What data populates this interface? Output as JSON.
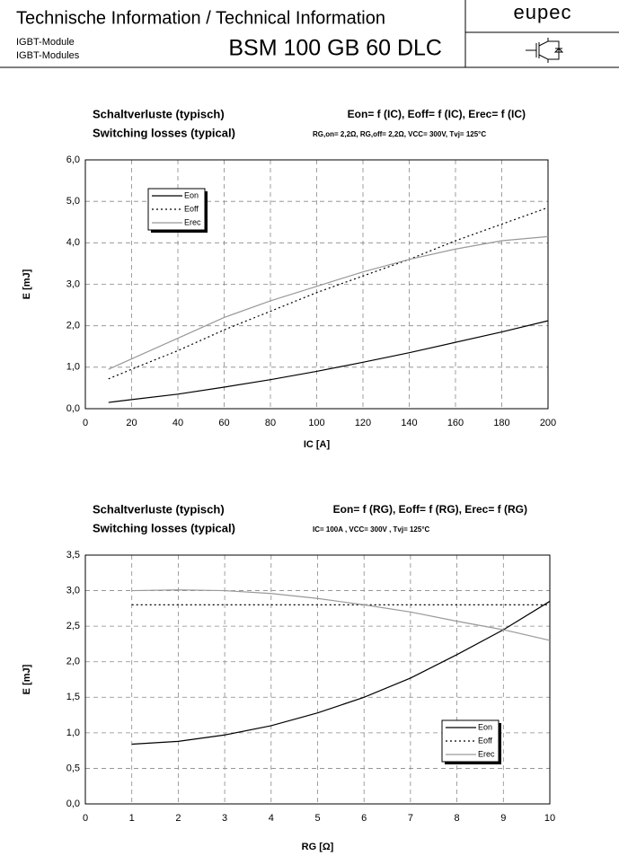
{
  "header": {
    "title": "Technische Information / Technical Information",
    "line1": "IGBT-Module",
    "line2": "IGBT-Modules",
    "part": "BSM 100 GB 60 DLC",
    "brand": "eupec"
  },
  "chart_data": [
    {
      "type": "line",
      "title_de": "Schaltverluste (typisch)",
      "title_en": "Switching losses (typical)",
      "formula": "Eon= f (IC), Eoff= f (IC), Erec= f (IC)",
      "subtitle": "RG,on= 2,2Ω, RG,off= 2,2Ω, VCC= 300V, Tvj= 125°C",
      "x_label": "IC [A]",
      "y_label": "E [mJ]",
      "x": [
        10,
        20,
        40,
        60,
        80,
        100,
        120,
        140,
        160,
        180,
        200
      ],
      "series": [
        {
          "name": "Eon",
          "color": "#000000",
          "style": "solid",
          "values": [
            0.15,
            0.22,
            0.35,
            0.52,
            0.7,
            0.9,
            1.12,
            1.35,
            1.6,
            1.85,
            2.12
          ]
        },
        {
          "name": "Eoff",
          "color": "#000000",
          "style": "dotted",
          "values": [
            0.72,
            0.95,
            1.4,
            1.9,
            2.35,
            2.8,
            3.2,
            3.6,
            4.05,
            4.45,
            4.85
          ]
        },
        {
          "name": "Erec",
          "color": "#999999",
          "style": "solid",
          "values": [
            0.95,
            1.2,
            1.7,
            2.2,
            2.6,
            2.95,
            3.3,
            3.6,
            3.85,
            4.05,
            4.15
          ]
        }
      ],
      "xlim": [
        0,
        200
      ],
      "xticks": [
        0,
        20,
        40,
        60,
        80,
        100,
        120,
        140,
        160,
        180,
        200
      ],
      "ylim": [
        0,
        6
      ],
      "yticks": [
        {
          "value": 0,
          "label": "0,0"
        },
        {
          "value": 1,
          "label": "1,0"
        },
        {
          "value": 2,
          "label": "2,0"
        },
        {
          "value": 3,
          "label": "3,0"
        },
        {
          "value": 4,
          "label": "4,0"
        },
        {
          "value": 5,
          "label": "5,0"
        },
        {
          "value": 6,
          "label": "6,0"
        }
      ],
      "grid": true,
      "legend": "upper left"
    },
    {
      "type": "line",
      "title_de": "Schaltverluste (typisch)",
      "title_en": "Switching losses (typical)",
      "formula": "Eon= f (RG), Eoff= f (RG), Erec= f (RG)",
      "subtitle": "IC= 100A , VCC= 300V , Tvj= 125°C",
      "x_label": "RG [Ω]",
      "y_label": "E [mJ]",
      "x": [
        1,
        2,
        3,
        4,
        5,
        6,
        7,
        8,
        9,
        10
      ],
      "series": [
        {
          "name": "Eon",
          "color": "#000000",
          "style": "solid",
          "values": [
            0.84,
            0.88,
            0.97,
            1.1,
            1.28,
            1.5,
            1.77,
            2.1,
            2.45,
            2.85
          ]
        },
        {
          "name": "Eoff",
          "color": "#000000",
          "style": "dotted",
          "values": [
            2.8,
            2.8,
            2.8,
            2.8,
            2.8,
            2.8,
            2.8,
            2.8,
            2.8,
            2.8
          ]
        },
        {
          "name": "Erec",
          "color": "#999999",
          "style": "solid",
          "values": [
            3.0,
            3.01,
            3.0,
            2.96,
            2.89,
            2.8,
            2.7,
            2.57,
            2.45,
            2.3
          ]
        }
      ],
      "xlim": [
        0,
        10
      ],
      "xticks": [
        0,
        1,
        2,
        3,
        4,
        5,
        6,
        7,
        8,
        9,
        10
      ],
      "ylim": [
        0,
        3.5
      ],
      "yticks": [
        {
          "value": 0,
          "label": "0,0"
        },
        {
          "value": 0.5,
          "label": "0,5"
        },
        {
          "value": 1,
          "label": "1,0"
        },
        {
          "value": 1.5,
          "label": "1,5"
        },
        {
          "value": 2,
          "label": "2,0"
        },
        {
          "value": 2.5,
          "label": "2,5"
        },
        {
          "value": 3,
          "label": "3,0"
        },
        {
          "value": 3.5,
          "label": "3,5"
        }
      ],
      "grid": true,
      "legend": "lower right"
    }
  ]
}
